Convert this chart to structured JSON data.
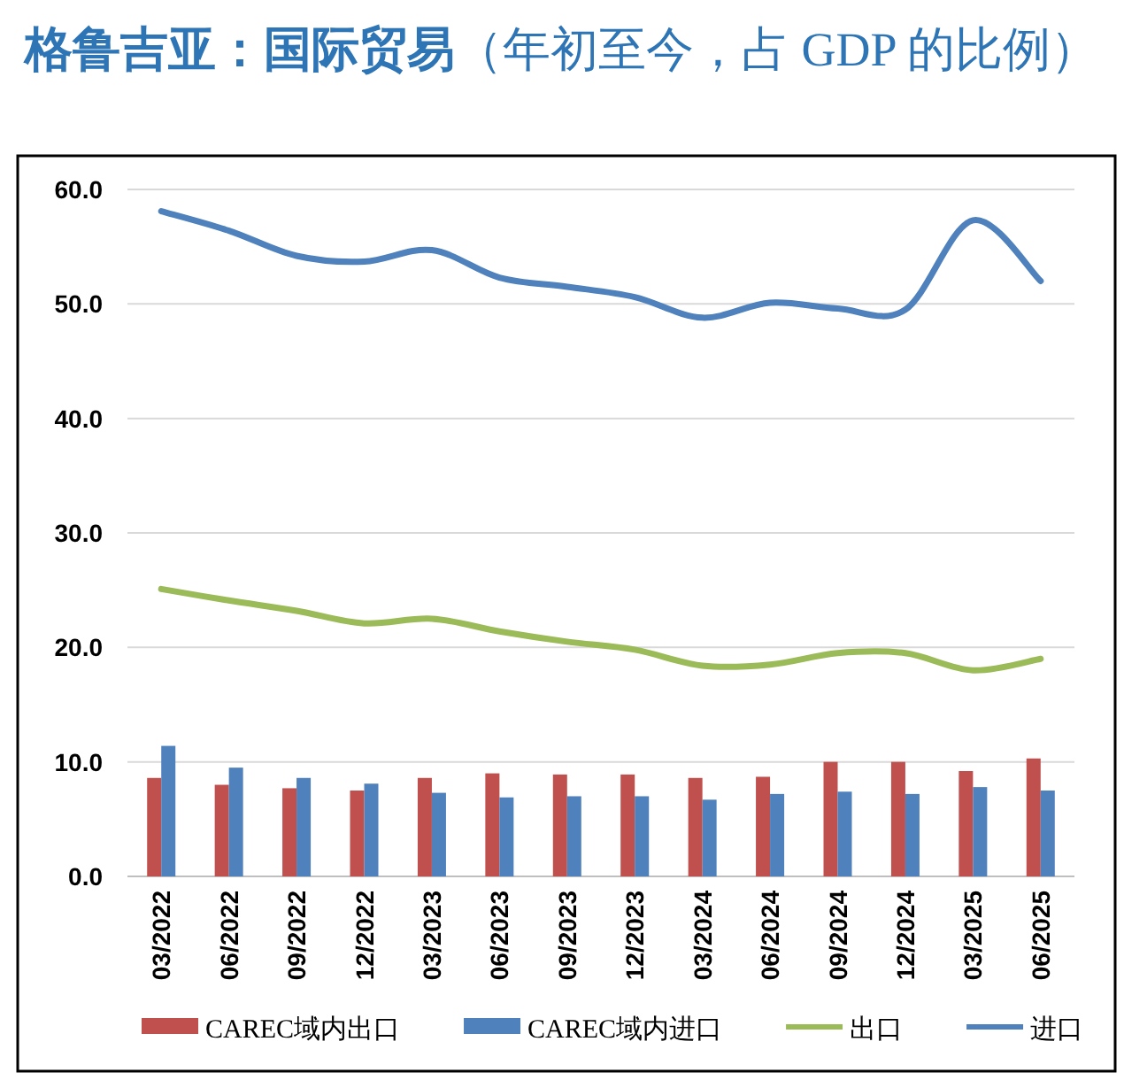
{
  "chart_data": {
    "type": "bar",
    "title": "格鲁吉亚：国际贸易",
    "subtitle": "（年初至今，占 GDP 的比例）",
    "categories": [
      "03/2022",
      "06/2022",
      "09/2022",
      "12/2022",
      "03/2023",
      "06/2023",
      "09/2023",
      "12/2023",
      "03/2024",
      "06/2024",
      "09/2024",
      "12/2024",
      "03/2025",
      "06/2025"
    ],
    "series": [
      {
        "name": "CAREC域内出口",
        "color": "#c0504d",
        "values": [
          8.6,
          8.0,
          7.7,
          7.5,
          8.6,
          9.0,
          8.9,
          8.9,
          8.6,
          8.7,
          10.0,
          10.0,
          9.2,
          10.3
        ]
      },
      {
        "name": "CAREC域内进口",
        "color": "#4f81bd",
        "values": [
          11.4,
          9.5,
          8.6,
          8.1,
          7.3,
          6.9,
          7.0,
          7.0,
          6.7,
          7.2,
          7.4,
          7.2,
          7.8,
          7.5
        ]
      },
      {
        "name": "出口",
        "type": "line",
        "color": "#9bbb59",
        "values": [
          25.1,
          24.1,
          23.2,
          22.1,
          22.5,
          21.4,
          20.5,
          19.8,
          18.4,
          18.5,
          19.5,
          19.5,
          18.0,
          19.0
        ]
      },
      {
        "name": "进口",
        "type": "line",
        "color": "#4f81bd",
        "values": [
          58.1,
          56.4,
          54.2,
          53.7,
          54.7,
          52.3,
          51.5,
          50.6,
          48.8,
          50.1,
          49.6,
          49.5,
          57.3,
          52.0
        ]
      }
    ],
    "ylim": [
      0,
      60
    ],
    "yticks": [
      {
        "value": 0,
        "label": "0.0"
      },
      {
        "value": 10,
        "label": "10.0"
      },
      {
        "value": 20,
        "label": "20.0"
      },
      {
        "value": 30,
        "label": "30.0"
      },
      {
        "value": 40,
        "label": "40.0"
      },
      {
        "value": 50,
        "label": "50.0"
      },
      {
        "value": 60,
        "label": "60.0"
      }
    ],
    "grid": "y",
    "legend": "bottom"
  }
}
